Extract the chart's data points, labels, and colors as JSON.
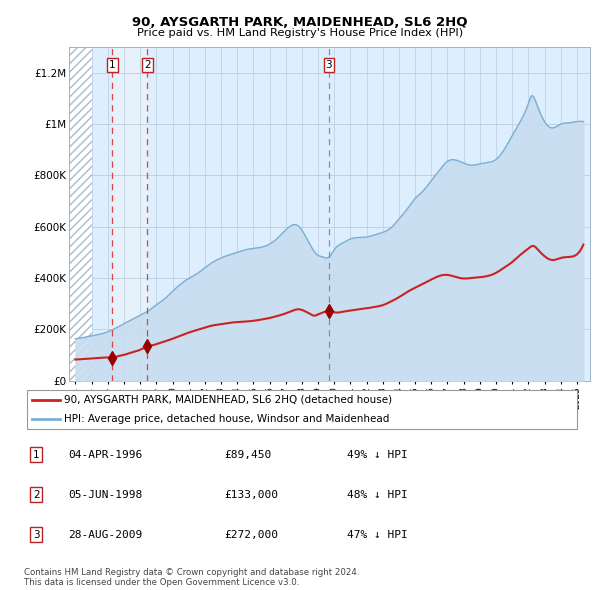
{
  "title": "90, AYSGARTH PARK, MAIDENHEAD, SL6 2HQ",
  "subtitle": "Price paid vs. HM Land Registry's House Price Index (HPI)",
  "legend_line1": "90, AYSGARTH PARK, MAIDENHEAD, SL6 2HQ (detached house)",
  "legend_line2": "HPI: Average price, detached house, Windsor and Maidenhead",
  "table_rows": [
    {
      "num": "1",
      "date": "04-APR-1996",
      "price": "£89,450",
      "hpi": "49% ↓ HPI"
    },
    {
      "num": "2",
      "date": "05-JUN-1998",
      "price": "£133,000",
      "hpi": "48% ↓ HPI"
    },
    {
      "num": "3",
      "date": "28-AUG-2009",
      "price": "£272,000",
      "hpi": "47% ↓ HPI"
    }
  ],
  "footnote1": "Contains HM Land Registry data © Crown copyright and database right 2024.",
  "footnote2": "This data is licensed under the Open Government Licence v3.0.",
  "hpi_line_color": "#7bafd4",
  "hpi_fill_color": "#c8ddf0",
  "price_color": "#cc2222",
  "marker_color": "#990000",
  "bg_color": "#ddeeff",
  "grid_color": "#b8cede",
  "sale_band_color": "#ddeeff",
  "ylim": [
    0,
    1300000
  ],
  "yticks": [
    0,
    200000,
    400000,
    600000,
    800000,
    1000000,
    1200000
  ],
  "ytick_labels": [
    "£0",
    "£200K",
    "£400K",
    "£600K",
    "£800K",
    "£1M",
    "£1.2M"
  ],
  "sale1_year": 1996.27,
  "sale1_price": 89450,
  "sale2_year": 1998.44,
  "sale2_price": 133000,
  "sale3_year": 2009.67,
  "sale3_price": 272000,
  "hpi_years": [
    1994.0,
    1994.5,
    1995.0,
    1995.5,
    1996.0,
    1996.5,
    1997.0,
    1997.5,
    1998.0,
    1998.5,
    1999.0,
    1999.5,
    2000.0,
    2000.5,
    2001.0,
    2001.5,
    2002.0,
    2002.5,
    2003.0,
    2003.5,
    2004.0,
    2004.5,
    2005.0,
    2005.5,
    2006.0,
    2006.5,
    2007.0,
    2007.3,
    2007.6,
    2007.9,
    2008.2,
    2008.5,
    2008.8,
    2009.0,
    2009.3,
    2009.5,
    2009.8,
    2010.0,
    2010.5,
    2011.0,
    2011.5,
    2012.0,
    2012.5,
    2013.0,
    2013.5,
    2014.0,
    2014.5,
    2015.0,
    2015.5,
    2016.0,
    2016.5,
    2017.0,
    2017.5,
    2018.0,
    2018.5,
    2019.0,
    2019.5,
    2020.0,
    2020.5,
    2021.0,
    2021.5,
    2022.0,
    2022.2,
    2022.5,
    2023.0,
    2023.5,
    2024.0,
    2024.5,
    2025.0,
    2025.4
  ],
  "hpi_vals": [
    163000,
    168000,
    174000,
    180000,
    190000,
    205000,
    222000,
    238000,
    255000,
    272000,
    295000,
    318000,
    348000,
    376000,
    398000,
    416000,
    440000,
    462000,
    478000,
    490000,
    500000,
    510000,
    515000,
    520000,
    532000,
    556000,
    588000,
    603000,
    608000,
    595000,
    565000,
    530000,
    500000,
    488000,
    482000,
    478000,
    490000,
    510000,
    536000,
    552000,
    558000,
    560000,
    568000,
    578000,
    595000,
    630000,
    668000,
    710000,
    740000,
    780000,
    820000,
    855000,
    860000,
    848000,
    840000,
    845000,
    850000,
    862000,
    900000,
    955000,
    1010000,
    1080000,
    1110000,
    1080000,
    1010000,
    985000,
    1000000,
    1005000,
    1010000,
    1010000
  ],
  "red_years": [
    1994.0,
    1994.5,
    1995.0,
    1995.5,
    1996.0,
    1996.27,
    1996.5,
    1997.0,
    1997.5,
    1998.0,
    1998.44,
    1998.8,
    1999.0,
    1999.5,
    2000.0,
    2000.5,
    2001.0,
    2001.5,
    2002.0,
    2002.5,
    2003.0,
    2003.5,
    2004.0,
    2004.5,
    2005.0,
    2005.5,
    2006.0,
    2006.5,
    2007.0,
    2007.4,
    2007.8,
    2008.2,
    2008.5,
    2008.8,
    2009.0,
    2009.3,
    2009.67,
    2009.9,
    2010.2,
    2010.5,
    2011.0,
    2011.5,
    2012.0,
    2012.5,
    2013.0,
    2013.5,
    2014.0,
    2014.5,
    2015.0,
    2015.5,
    2016.0,
    2016.5,
    2017.0,
    2017.5,
    2018.0,
    2018.5,
    2019.0,
    2019.5,
    2020.0,
    2020.5,
    2021.0,
    2021.5,
    2022.0,
    2022.3,
    2022.6,
    2023.0,
    2023.5,
    2024.0,
    2024.5,
    2025.0,
    2025.4
  ],
  "red_vals": [
    82000,
    84000,
    86000,
    88000,
    90000,
    89450,
    93000,
    100000,
    110000,
    120000,
    133000,
    138000,
    142000,
    152000,
    163000,
    175000,
    187000,
    197000,
    207000,
    215000,
    220000,
    225000,
    228000,
    230000,
    233000,
    238000,
    244000,
    252000,
    262000,
    272000,
    278000,
    270000,
    260000,
    253000,
    258000,
    265000,
    272000,
    268000,
    265000,
    268000,
    273000,
    278000,
    282000,
    287000,
    294000,
    308000,
    325000,
    345000,
    362000,
    378000,
    394000,
    408000,
    412000,
    404000,
    398000,
    400000,
    403000,
    408000,
    420000,
    440000,
    462000,
    490000,
    515000,
    525000,
    510000,
    485000,
    470000,
    478000,
    482000,
    492000,
    530000
  ]
}
